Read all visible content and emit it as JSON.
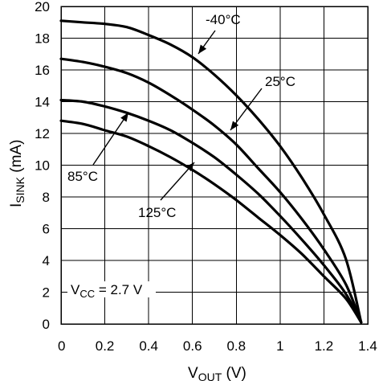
{
  "chart_data": {
    "type": "line",
    "xlabel_main": "V",
    "xlabel_sub": "OUT",
    "xlabel_unit": " (V)",
    "ylabel_main": "I",
    "ylabel_sub": "SINK",
    "ylabel_unit": " (mA)",
    "xlim": [
      0,
      1.4
    ],
    "ylim": [
      0,
      20
    ],
    "x_ticks": [
      0,
      0.2,
      0.4,
      0.6,
      0.8,
      1,
      1.2,
      1.4
    ],
    "x_tick_labels": [
      "0",
      "0.2",
      "0.4",
      "0.6",
      "0.8",
      "1",
      "1.2",
      "1.4"
    ],
    "y_ticks": [
      0,
      2,
      4,
      6,
      8,
      10,
      12,
      14,
      16,
      18,
      20
    ],
    "y_tick_labels": [
      "0",
      "2",
      "4",
      "6",
      "8",
      "10",
      "12",
      "14",
      "16",
      "18",
      "20"
    ],
    "grid": true,
    "annotation": {
      "pre": "V",
      "sub": "CC",
      "post": " = 2.7 V"
    },
    "series": [
      {
        "name": "-40°C",
        "points": [
          [
            0,
            19.1
          ],
          [
            0.1,
            19.0
          ],
          [
            0.2,
            18.9
          ],
          [
            0.3,
            18.7
          ],
          [
            0.4,
            18.2
          ],
          [
            0.5,
            17.6
          ],
          [
            0.6,
            16.8
          ],
          [
            0.7,
            15.7
          ],
          [
            0.8,
            14.4
          ],
          [
            0.9,
            12.9
          ],
          [
            1.0,
            11.2
          ],
          [
            1.1,
            9.2
          ],
          [
            1.2,
            6.9
          ],
          [
            1.3,
            4.1
          ],
          [
            1.37,
            0.1
          ]
        ]
      },
      {
        "name": "25°C",
        "points": [
          [
            0,
            16.7
          ],
          [
            0.1,
            16.5
          ],
          [
            0.2,
            16.2
          ],
          [
            0.3,
            15.8
          ],
          [
            0.4,
            15.2
          ],
          [
            0.5,
            14.4
          ],
          [
            0.6,
            13.5
          ],
          [
            0.7,
            12.5
          ],
          [
            0.8,
            11.3
          ],
          [
            0.9,
            9.8
          ],
          [
            1.0,
            8.3
          ],
          [
            1.1,
            6.6
          ],
          [
            1.2,
            4.7
          ],
          [
            1.3,
            2.5
          ],
          [
            1.37,
            0.1
          ]
        ]
      },
      {
        "name": "85°C",
        "points": [
          [
            0,
            14.1
          ],
          [
            0.1,
            14.0
          ],
          [
            0.2,
            13.7
          ],
          [
            0.3,
            13.3
          ],
          [
            0.4,
            12.8
          ],
          [
            0.5,
            12.2
          ],
          [
            0.6,
            11.4
          ],
          [
            0.7,
            10.5
          ],
          [
            0.8,
            9.4
          ],
          [
            0.9,
            8.2
          ],
          [
            1.0,
            6.8
          ],
          [
            1.1,
            5.3
          ],
          [
            1.2,
            3.7
          ],
          [
            1.3,
            1.9
          ],
          [
            1.37,
            0.1
          ]
        ]
      },
      {
        "name": "125°C",
        "points": [
          [
            0,
            12.8
          ],
          [
            0.1,
            12.6
          ],
          [
            0.2,
            12.2
          ],
          [
            0.3,
            11.8
          ],
          [
            0.4,
            11.2
          ],
          [
            0.5,
            10.5
          ],
          [
            0.6,
            9.7
          ],
          [
            0.7,
            8.8
          ],
          [
            0.8,
            7.8
          ],
          [
            0.9,
            6.7
          ],
          [
            1.0,
            5.6
          ],
          [
            1.1,
            4.4
          ],
          [
            1.2,
            3.0
          ],
          [
            1.3,
            1.6
          ],
          [
            1.37,
            0.1
          ]
        ]
      }
    ]
  }
}
